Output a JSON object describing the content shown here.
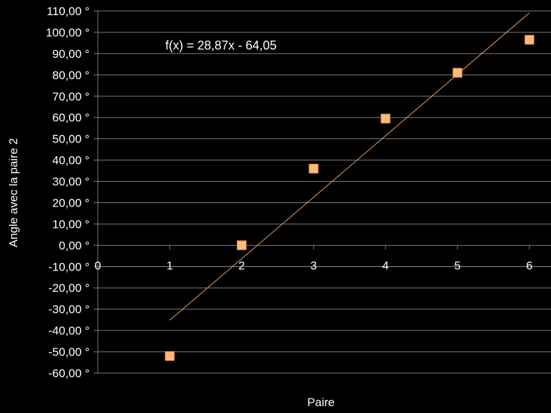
{
  "chart_data": {
    "type": "scatter",
    "xlabel": "Paire",
    "ylabel": "Angle avec la paire 2",
    "xlim": [
      0,
      6.3
    ],
    "ylim": [
      -60,
      110
    ],
    "x_ticks": [
      "0",
      "1",
      "2",
      "3",
      "4",
      "5",
      "6"
    ],
    "y_ticks": [
      "110,00 °",
      "100,00 °",
      "90,00 °",
      "80,00 °",
      "70,00 °",
      "60,00 °",
      "50,00 °",
      "40,00 °",
      "30,00 °",
      "20,00 °",
      "10,00 °",
      "0,00 °",
      "-10,00 °",
      "-20,00 °",
      "-30,00 °",
      "-40,00 °",
      "-50,00 °",
      "-60,00 °"
    ],
    "grid": true,
    "series": [
      {
        "x": [
          1,
          2,
          3,
          4,
          5,
          6
        ],
        "y": [
          -52,
          0,
          36,
          59.5,
          81,
          96.5
        ],
        "color": "#fcb97a"
      }
    ],
    "trendline": {
      "equation": "f(x) = 28,87x - 64,05",
      "slope": 28.87,
      "intercept": -64.05,
      "x_range": [
        1,
        6
      ],
      "color": "#f4a460"
    }
  }
}
